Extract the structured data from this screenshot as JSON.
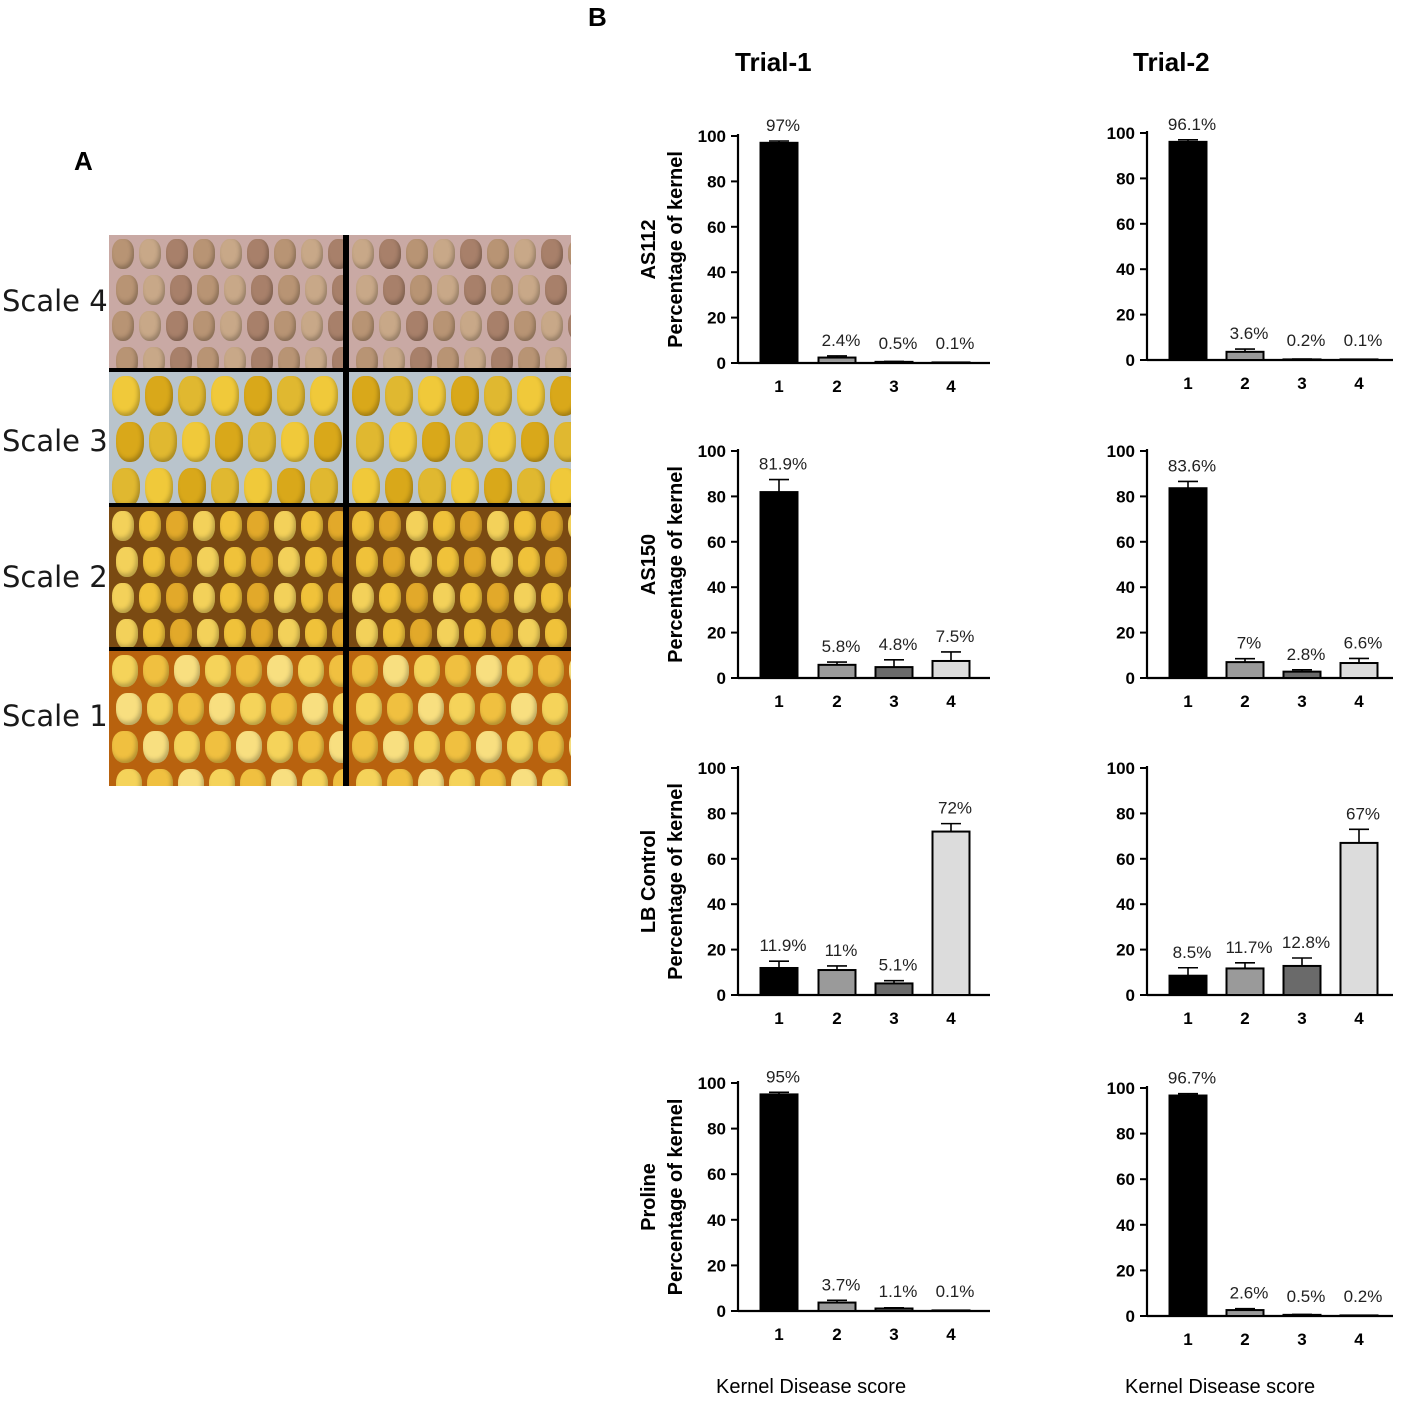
{
  "panel_a": {
    "letter": "A",
    "scale_labels": [
      "Scale 4",
      "Scale 3",
      "Scale 2",
      "Scale 1"
    ]
  },
  "panel_b": {
    "letter": "B",
    "trials": [
      "Trial-1",
      "Trial-2"
    ],
    "ylabel": "Percentage of kernel",
    "xlabel": "Kernel Disease score"
  },
  "colors": {
    "score_1": "#000000",
    "score_2": "#9a9a9a",
    "score_3": "#6a6a6a",
    "score_4": "#dcdcdc",
    "axis": "#000000"
  },
  "chart_data": [
    {
      "type": "bar",
      "treatment": "AS112",
      "trial": "Trial-1",
      "categories": [
        "1",
        "2",
        "3",
        "4"
      ],
      "values": [
        97,
        2.4,
        0.5,
        0.1
      ],
      "labels": [
        "97%",
        "2.4%",
        "0.5%",
        "0.1%"
      ],
      "ylim": [
        0,
        100
      ],
      "yticks": [
        0,
        20,
        40,
        60,
        80,
        100
      ]
    },
    {
      "type": "bar",
      "treatment": "AS112",
      "trial": "Trial-2",
      "categories": [
        "1",
        "2",
        "3",
        "4"
      ],
      "values": [
        96.1,
        3.6,
        0.2,
        0.1
      ],
      "labels": [
        "96.1%",
        "3.6%",
        "0.2%",
        "0.1%"
      ],
      "ylim": [
        0,
        100
      ],
      "yticks": [
        0,
        20,
        40,
        60,
        80,
        100
      ]
    },
    {
      "type": "bar",
      "treatment": "AS150",
      "trial": "Trial-1",
      "categories": [
        "1",
        "2",
        "3",
        "4"
      ],
      "values": [
        81.9,
        5.8,
        4.8,
        7.5
      ],
      "labels": [
        "81.9%",
        "5.8%",
        "4.8%",
        "7.5%"
      ],
      "ylim": [
        0,
        100
      ],
      "yticks": [
        0,
        20,
        40,
        60,
        80,
        100
      ]
    },
    {
      "type": "bar",
      "treatment": "AS150",
      "trial": "Trial-2",
      "categories": [
        "1",
        "2",
        "3",
        "4"
      ],
      "values": [
        83.6,
        7,
        2.8,
        6.6
      ],
      "labels": [
        "83.6%",
        "7%",
        "2.8%",
        "6.6%"
      ],
      "ylim": [
        0,
        100
      ],
      "yticks": [
        0,
        20,
        40,
        60,
        80,
        100
      ]
    },
    {
      "type": "bar",
      "treatment": "LB Control",
      "trial": "Trial-1",
      "categories": [
        "1",
        "2",
        "3",
        "4"
      ],
      "values": [
        11.9,
        11,
        5.1,
        72
      ],
      "labels": [
        "11.9%",
        "11%",
        "5.1%",
        "72%"
      ],
      "ylim": [
        0,
        100
      ],
      "yticks": [
        0,
        20,
        40,
        60,
        80,
        100
      ]
    },
    {
      "type": "bar",
      "treatment": "LB Control",
      "trial": "Trial-2",
      "categories": [
        "1",
        "2",
        "3",
        "4"
      ],
      "values": [
        8.5,
        11.7,
        12.8,
        67
      ],
      "labels": [
        "8.5%",
        "11.7%",
        "12.8%",
        "67%"
      ],
      "ylim": [
        0,
        100
      ],
      "yticks": [
        0,
        20,
        40,
        60,
        80,
        100
      ]
    },
    {
      "type": "bar",
      "treatment": "Proline",
      "trial": "Trial-1",
      "categories": [
        "1",
        "2",
        "3",
        "4"
      ],
      "values": [
        95,
        3.7,
        1.1,
        0.1
      ],
      "labels": [
        "95%",
        "3.7%",
        "1.1%",
        "0.1%"
      ],
      "ylim": [
        0,
        100
      ],
      "yticks": [
        0,
        20,
        40,
        60,
        80,
        100
      ]
    },
    {
      "type": "bar",
      "treatment": "Proline",
      "trial": "Trial-2",
      "categories": [
        "1",
        "2",
        "3",
        "4"
      ],
      "values": [
        96.7,
        2.6,
        0.5,
        0.2
      ],
      "labels": [
        "96.7%",
        "2.6%",
        "0.5%",
        "0.2%"
      ],
      "ylim": [
        0,
        100
      ],
      "yticks": [
        0,
        20,
        40,
        60,
        80,
        100
      ]
    }
  ]
}
